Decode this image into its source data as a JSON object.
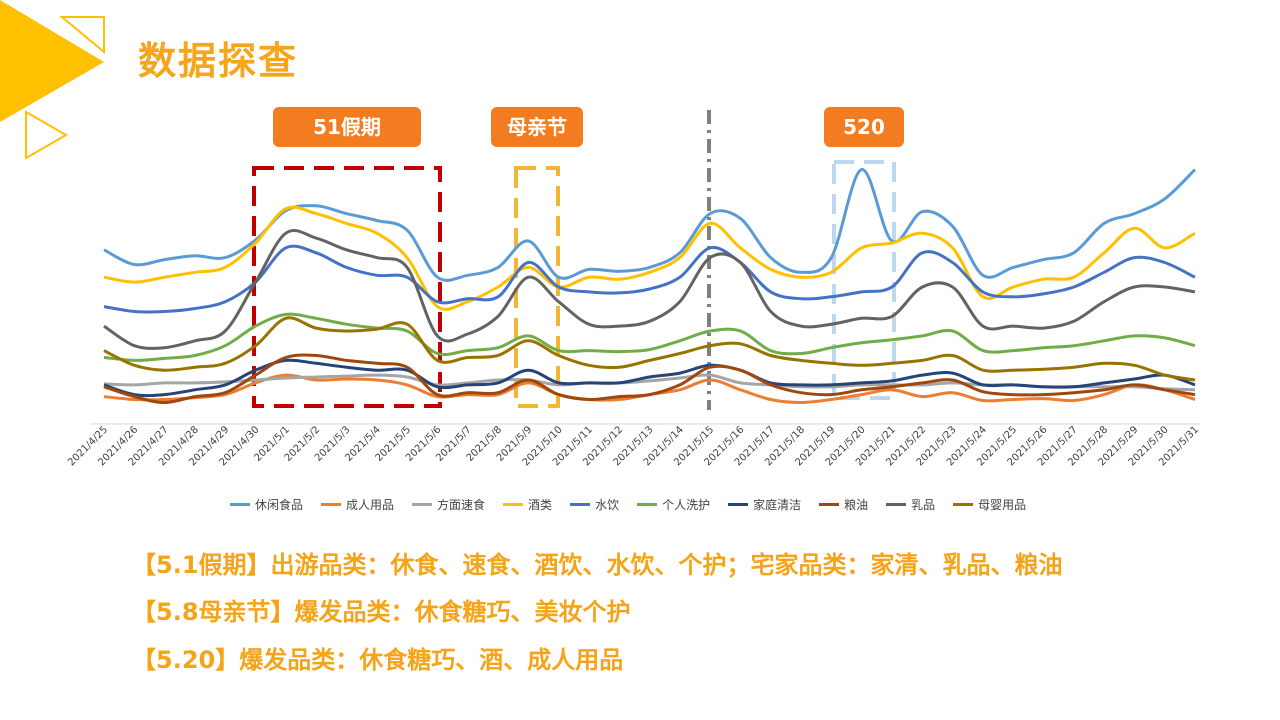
{
  "page": {
    "title": "数据探查"
  },
  "annotations": {
    "holiday_51": "51假期",
    "mothers_day": "母亲节",
    "day_520": "520"
  },
  "conclusions": [
    "【5.1假期】出游品类：休食、速食、酒饮、水饮、个护；宅家品类：家清、乳品、粮油",
    "【5.8母亲节】爆发品类：休食糖巧、美妆个护",
    "【5.20】爆发品类：休食糖巧、酒、成人用品"
  ],
  "colors": {
    "title": "#f7a51b",
    "tag_bg": "#f47c20",
    "box_51": "#c00000",
    "box_mothers": "#f2b632",
    "box_520": "#bdd7ee",
    "divider": "#808080"
  },
  "chart_data": {
    "type": "line",
    "title": "",
    "xlabel": "",
    "ylabel": "",
    "grid": false,
    "legend_position": "bottom",
    "x": [
      "2021/4/25",
      "2021/4/26",
      "2021/4/27",
      "2021/4/28",
      "2021/4/29",
      "2021/4/30",
      "2021/5/1",
      "2021/5/2",
      "2021/5/3",
      "2021/5/4",
      "2021/5/5",
      "2021/5/6",
      "2021/5/7",
      "2021/5/8",
      "2021/5/9",
      "2021/5/10",
      "2021/5/11",
      "2021/5/12",
      "2021/5/13",
      "2021/5/14",
      "2021/5/15",
      "2021/5/16",
      "2021/5/17",
      "2021/5/18",
      "2021/5/19",
      "2021/5/20",
      "2021/5/21",
      "2021/5/22",
      "2021/5/23",
      "2021/5/24",
      "2021/5/25",
      "2021/5/26",
      "2021/5/27",
      "2021/5/28",
      "2021/5/29",
      "2021/5/30",
      "2021/5/31"
    ],
    "ylim": [
      0,
      280
    ],
    "series": [
      {
        "name": "休闲食品",
        "color": "#5b9bd5",
        "values": [
          178,
          163,
          168,
          172,
          170,
          188,
          218,
          223,
          215,
          208,
          198,
          150,
          152,
          160,
          187,
          150,
          158,
          156,
          160,
          175,
          215,
          210,
          170,
          155,
          170,
          260,
          187,
          217,
          202,
          152,
          160,
          168,
          175,
          205,
          215,
          230,
          260
        ]
      },
      {
        "name": "成人用品",
        "color": "#ed7d31",
        "values": [
          28,
          25,
          25,
          27,
          30,
          42,
          50,
          45,
          46,
          45,
          40,
          28,
          30,
          30,
          42,
          30,
          25,
          25,
          30,
          35,
          45,
          35,
          25,
          22,
          25,
          30,
          35,
          28,
          32,
          24,
          25,
          26,
          24,
          30,
          40,
          35,
          25
        ]
      },
      {
        "name": "方面速食",
        "color": "#a5a5a5",
        "values": [
          41,
          40,
          42,
          42,
          43,
          45,
          47,
          48,
          49,
          50,
          48,
          40,
          42,
          45,
          45,
          40,
          42,
          42,
          44,
          47,
          50,
          42,
          40,
          38,
          38,
          40,
          40,
          40,
          42,
          40,
          40,
          38,
          38,
          38,
          38,
          36,
          35
        ]
      },
      {
        "name": "酒类",
        "color": "#ffc000",
        "values": [
          150,
          145,
          150,
          155,
          160,
          185,
          220,
          215,
          205,
          195,
          170,
          120,
          125,
          140,
          160,
          140,
          150,
          148,
          155,
          170,
          205,
          180,
          158,
          150,
          155,
          180,
          185,
          195,
          180,
          130,
          140,
          148,
          150,
          175,
          200,
          180,
          195
        ]
      },
      {
        "name": "水饮",
        "color": "#4472c4",
        "values": [
          120,
          115,
          115,
          118,
          125,
          145,
          180,
          175,
          160,
          152,
          150,
          125,
          128,
          130,
          165,
          140,
          135,
          134,
          138,
          150,
          180,
          165,
          135,
          128,
          130,
          135,
          140,
          175,
          165,
          135,
          130,
          133,
          140,
          155,
          170,
          165,
          150
        ]
      },
      {
        "name": "个人洗护",
        "color": "#70ad47",
        "values": [
          68,
          65,
          67,
          70,
          80,
          100,
          112,
          108,
          102,
          98,
          95,
          72,
          75,
          78,
          90,
          75,
          75,
          74,
          76,
          85,
          95,
          95,
          75,
          72,
          78,
          83,
          86,
          90,
          95,
          75,
          75,
          78,
          80,
          85,
          90,
          88,
          80
        ]
      },
      {
        "name": "家庭清洁",
        "color": "#264478",
        "values": [
          40,
          30,
          30,
          35,
          40,
          55,
          65,
          62,
          58,
          55,
          55,
          38,
          40,
          42,
          55,
          42,
          42,
          42,
          48,
          52,
          60,
          55,
          42,
          40,
          40,
          42,
          44,
          50,
          52,
          40,
          40,
          38,
          38,
          42,
          46,
          50,
          40
        ]
      },
      {
        "name": "粮油",
        "color": "#9e480e",
        "values": [
          38,
          28,
          22,
          28,
          32,
          50,
          68,
          70,
          65,
          62,
          58,
          30,
          32,
          32,
          45,
          30,
          25,
          28,
          30,
          40,
          58,
          55,
          40,
          32,
          30,
          35,
          38,
          42,
          45,
          33,
          30,
          30,
          32,
          35,
          40,
          35,
          30
        ]
      },
      {
        "name": "乳品",
        "color": "#636363",
        "values": [
          100,
          80,
          78,
          85,
          95,
          145,
          195,
          190,
          178,
          170,
          160,
          90,
          92,
          110,
          150,
          125,
          102,
          100,
          105,
          125,
          170,
          165,
          115,
          100,
          102,
          108,
          110,
          140,
          140,
          100,
          100,
          98,
          105,
          125,
          140,
          140,
          135
        ]
      },
      {
        "name": "母婴用品",
        "color": "#997300",
        "values": [
          75,
          60,
          55,
          58,
          62,
          80,
          108,
          98,
          95,
          97,
          102,
          65,
          68,
          70,
          85,
          70,
          60,
          58,
          65,
          72,
          80,
          82,
          70,
          65,
          62,
          60,
          62,
          65,
          70,
          55,
          55,
          56,
          58,
          62,
          60,
          50,
          45
        ]
      }
    ]
  }
}
